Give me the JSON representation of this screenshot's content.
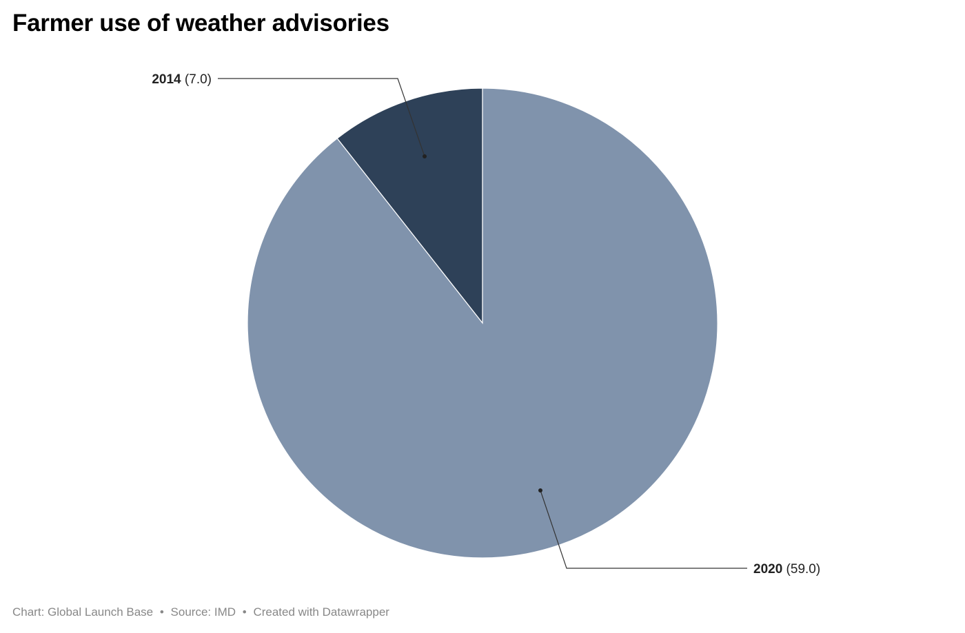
{
  "chart_data": {
    "type": "pie",
    "title": "Farmer use of weather advisories",
    "slices": [
      {
        "label": "2014",
        "value": 7.0,
        "value_text": "(7.0)",
        "color": "#2e4158"
      },
      {
        "label": "2020",
        "value": 59.0,
        "value_text": "(59.0)",
        "color": "#8093ac"
      }
    ]
  },
  "footer": {
    "chart_credit": "Chart: Global Launch Base",
    "source": "Source: IMD",
    "created_with": "Created with Datawrapper",
    "separator": "•"
  }
}
